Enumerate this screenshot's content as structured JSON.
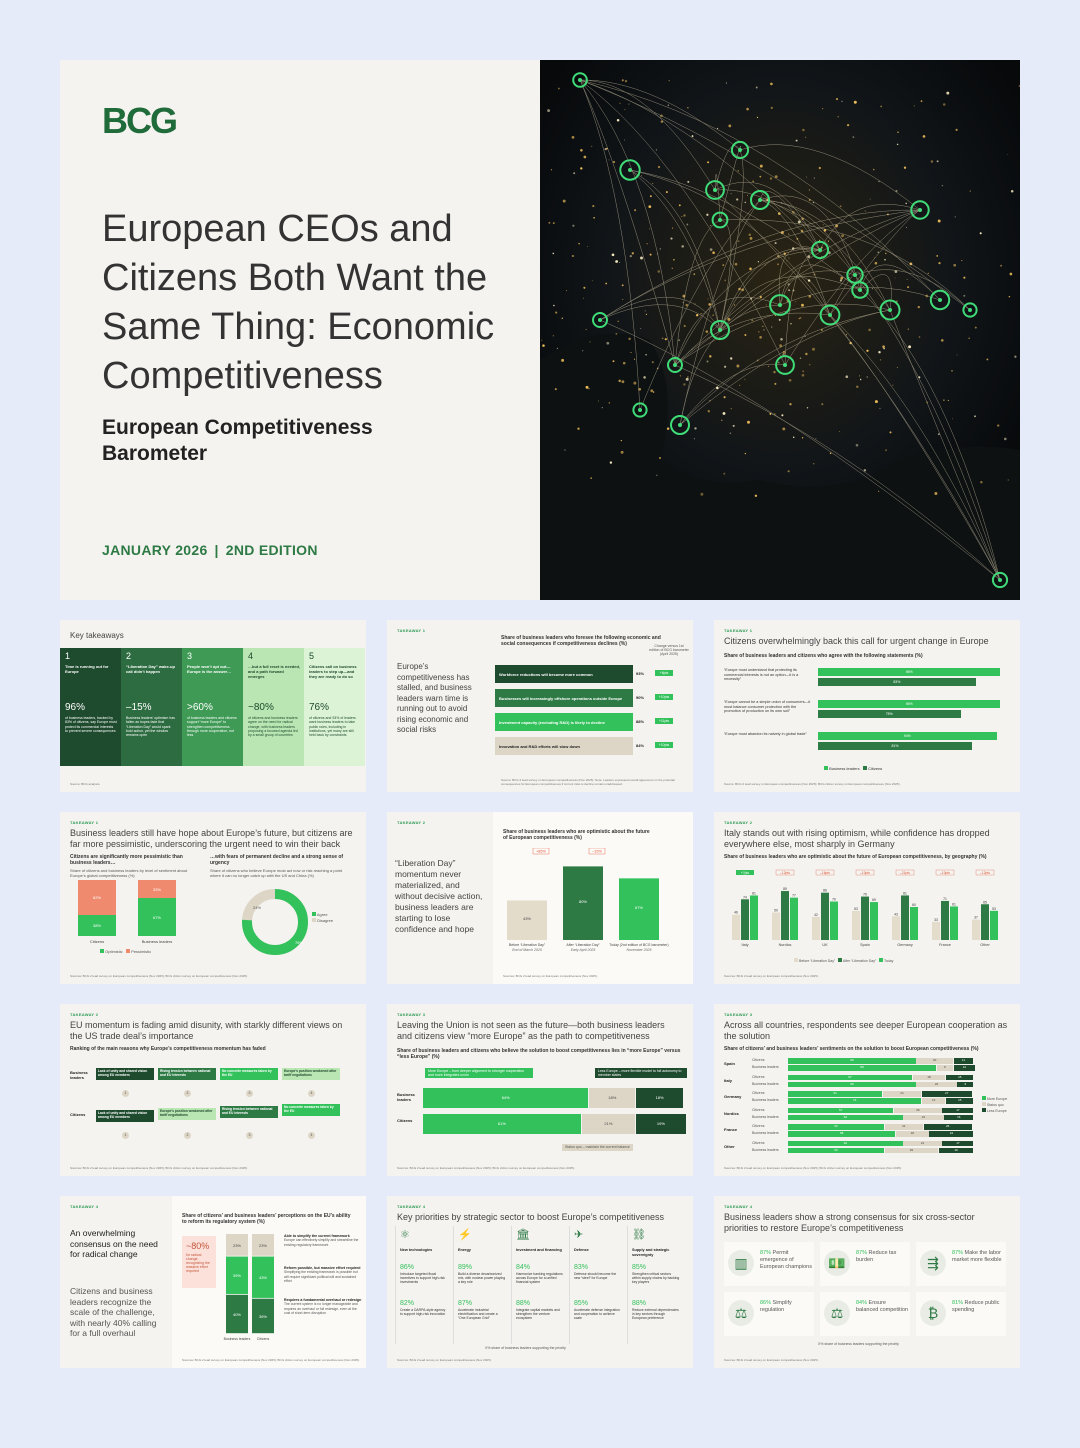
{
  "cover": {
    "logo": "BCG",
    "title": "European CEOs and Citizens Both Want the Same Thing: Economic Competitiveness",
    "subtitle": "European Competitiveness Barometer",
    "date": "JANUARY 2026",
    "edition": "2ND EDITION"
  },
  "tiles": {
    "t1": {
      "title": "Key takeaways",
      "cols": [
        {
          "num": "1",
          "head": "Time is running out for Europe",
          "stat": "96%",
          "desc": "of business leaders, backed by 83% of citizens, say Europe must protect its commercial interests to prevent severe consequences",
          "color": "#1e4a2e"
        },
        {
          "num": "2",
          "head": "“Liberation Day” wake-up call didn’t happen",
          "stat": "–15%",
          "desc": "Business leaders’ optimism has fallen as hopes fade that “Liberation Day” would spark bold action, yet the window remains open",
          "color": "#2d6b40"
        },
        {
          "num": "3",
          "head": "People won’t opt out—Europe is the answer…",
          "stat": ">60%",
          "desc": "of business leaders and citizens support “more Europe” to strengthen competitiveness through more cooperation, not less",
          "color": "#3f9a56"
        },
        {
          "num": "4",
          "head": "…but a full reset is needed, and a path forward emerges",
          "stat": "~80%",
          "desc": "of citizens and business leaders agree on the need for radical change, with business leaders proposing a focused agenda led by a small group of countries",
          "color": "#b9e6b2"
        },
        {
          "num": "5",
          "head": "Citizens call on business leaders to step up—and they are ready to do so",
          "stat": "76%",
          "desc": "of citizens and 93% of leaders want business leaders to take public roles, including in institutions, yet many are still held back by constraints",
          "color": "#dcf3d6"
        }
      ],
      "source": "Source: BCG analysis."
    },
    "t2": {
      "tag": "TAKEAWAY 1",
      "side": "Europe’s competitiveness has stalled, and business leaders warn time is running out to avoid rising economic and social risks",
      "subtitle": "Share of business leaders who foresee the following economic and social consequences if competitiveness declines (%)",
      "change_head": "Change versus 1st edition of BCG barometer (April 2025)",
      "rows": [
        {
          "label": "Workforce reductions will become more common",
          "value": 93,
          "change": "+6pts",
          "color": "#1e4a2e"
        },
        {
          "label": "Businesses will increasingly offshore operations outside Europe",
          "value": 90,
          "change": "+10pts",
          "color": "#2d7a45"
        },
        {
          "label": "Investment capacity (excluding R&D) is likely to decline",
          "value": 88,
          "change": "+11pts",
          "color": "#33c15c"
        },
        {
          "label": "Innovation and R&D efforts will slow down",
          "value": 84,
          "change": "+10pts",
          "color": "#ddd6c6"
        }
      ],
      "source": "Source: BCG 2 lead survey on European competitiveness (Nov 2025). Note: Leaders expressed overall agreement on the potential consequences for European competitiveness if current risks is decline remain unaddressed."
    },
    "t3": {
      "tag": "TAKEAWAY 1",
      "title": "Citizens overwhelmingly back this call for urgent change in Europe",
      "subtitle": "Share of business leaders and citizens who agree with the following statements (%)",
      "rows": [
        {
          "label": "“Europe must understand that protecting its commercial interests is not an option—it is a necessity”",
          "leaders": 96,
          "citizens": 83
        },
        {
          "label": "“Europe cannot be a simple union of consumers—it must balance consumer protection with the promotion of production on its own soil”",
          "leaders": 96,
          "citizens": 75
        },
        {
          "label": "“Europe must abandon its naivety in global trade”",
          "leaders": 94,
          "citizens": 81
        }
      ],
      "legend": [
        "Business leaders",
        "Citizens"
      ],
      "source": "Source: BCG 2 lead survey on European competitiveness (Nov 2025); BCG citizen survey on European competitiveness (Nov 2025)."
    },
    "t4": {
      "tag": "TAKEAWAY 1",
      "title": "Business leaders still have hope about Europe’s future, but citizens are far more pessimistic, underscoring the urgent need to win their back",
      "left_head": "Citizens are significantly more pessimistic than business leaders…",
      "left_sub": "Share of citizens and business leaders by level of sentiment about Europe’s global competitiveness (%)",
      "bars": [
        {
          "label": "Citizens",
          "opt": 38,
          "pess": 62
        },
        {
          "label": "Business leaders",
          "opt": 67,
          "pess": 33
        }
      ],
      "legend_left": [
        "Optimistic",
        "Pessimistic"
      ],
      "right_head": "…with fears of permanent decline and a strong sense of urgency",
      "right_sub": "Share of citizens who believe Europe must act now or risk reaching a point where it can no longer catch up with the US and China (%)",
      "donut": {
        "agree": 76,
        "disagree": 24
      },
      "legend_right": [
        "Agree",
        "Disagree"
      ],
      "source": "Sources: BCG 2 lead survey on European competitiveness (Nov 2025); BCG citizen survey on European competitiveness (Nov 2025)."
    },
    "t5": {
      "tag": "TAKEAWAY 2",
      "side": "“Liberation Day” momentum never materialized, and without decisive action, business leaders are starting to lose confidence and hope",
      "subtitle": "Share of business leaders who are optimistic about the future of European competitiveness (%)",
      "deltas": [
        "+85%",
        "–15%"
      ],
      "bars": [
        {
          "value": 43,
          "label": "Before “Liberation Day”",
          "sub": "End of March 2025",
          "color": "#e4dccb"
        },
        {
          "value": 80,
          "label": "After “Liberation Day”",
          "sub": "Early April 2025",
          "color": "#2d7a45"
        },
        {
          "value": 67,
          "label": "Today (2nd edition of BCG barometer)",
          "sub": "November 2025",
          "color": "#33c15c"
        }
      ],
      "source": "Sources: BCG 2 lead survey on European competitiveness (Nov 2025)."
    },
    "t6": {
      "tag": "TAKEAWAY 2",
      "title": "Italy stands out with rising optimism, while confidence has dropped everywhere else, most sharply in Germany",
      "subtitle": "Share of business leaders who are optimistic about the future of European competitiveness, by geography (%)",
      "groups": [
        {
          "name": "Italy",
          "vals": [
            46,
            74,
            81
          ],
          "delta": "+7pts"
        },
        {
          "name": "Nordics",
          "vals": [
            50,
            89,
            77
          ],
          "delta": "–12pts"
        },
        {
          "name": "UK",
          "vals": [
            42,
            86,
            70
          ],
          "delta": "–16pts"
        },
        {
          "name": "Spain",
          "vals": [
            53,
            79,
            69
          ],
          "delta": "–10pts"
        },
        {
          "name": "Germany",
          "vals": [
            43,
            81,
            60
          ],
          "delta": "–21pts"
        },
        {
          "name": "France",
          "vals": [
            33,
            71,
            61
          ],
          "delta": "–10pts"
        },
        {
          "name": "Other",
          "vals": [
            37,
            65,
            53
          ],
          "delta": "–12pts"
        }
      ],
      "legend": [
        "Before “Liberation Day”",
        "After “Liberation Day”",
        "Today"
      ],
      "source": "Sources: BCG 2 lead survey on European competitiveness (Nov 2025)."
    },
    "t7": {
      "tag": "TAKEAWAY 2",
      "title": "EU momentum is fading amid disunity, with starkly different views on the US trade deal’s importance",
      "subtitle": "Ranking of the main reasons why Europe’s competitiveness momentum has faded",
      "rows": [
        {
          "label": "Business leaders",
          "items": [
            "Lack of unity and shared vision among EU members",
            "Rising tension between national and EU interests",
            "No concrete measures taken by the EU",
            "Europe’s position weakened after tariff negotiations"
          ]
        },
        {
          "label": "Citizens",
          "items": [
            "Lack of unity and shared vision among EU members",
            "Europe’s position weakened after tariff negotiations",
            "Rising tension between national and EU interests",
            "No concrete measures taken by the EU"
          ]
        }
      ],
      "ranks": [
        "1",
        "2",
        "3",
        "4"
      ],
      "source": "Sources: BCG 2 lead survey on European competitiveness (Nov 2025); BCG citizen survey on European competitiveness (Nov 2025)."
    },
    "t8": {
      "tag": "TAKEAWAY 3",
      "title": "Leaving the Union is not seen as the future—both business leaders and citizens view “more Europe” as the path to competitiveness",
      "subtitle": "Share of business leaders and citizens who believe the solution to boost competitiveness lies in “more Europe” versus “less Europe” (%)",
      "more": "More Europe – from deeper alignment to stronger cooperation and more integrated union",
      "less": "Less Europe – more flexible model to full autonomy to member states",
      "rows": [
        {
          "label": "Business leaders",
          "more": 64,
          "quo": 18,
          "less": 18
        },
        {
          "label": "Citizens",
          "more": 61,
          "quo": 21,
          "less": 19
        }
      ],
      "statusquo": "Status quo – maintain the current balance",
      "source": "Sources: BCG 2 lead survey on European competitiveness (Nov 2025); BCG citizen survey on European competitiveness (Nov 2025)."
    },
    "t9": {
      "tag": "TAKEAWAY 3",
      "title": "Across all countries, respondents see deeper European cooperation as the solution",
      "subtitle": "Share of citizens’ and business leaders’ sentiments on the solution to boost European competitiveness (%)",
      "countries": [
        {
          "name": "Spain",
          "rows": [
            [
              69,
              20,
              11
            ],
            [
              80,
              9,
              12
            ]
          ]
        },
        {
          "name": "Italy",
          "rows": [
            [
              67,
              18,
              15
            ],
            [
              69,
              22,
              9
            ]
          ]
        },
        {
          "name": "Germany",
          "rows": [
            [
              51,
              21,
              27
            ],
            [
              72,
              13,
              15
            ]
          ]
        },
        {
          "name": "Nordics",
          "rows": [
            [
              57,
              26,
              17
            ],
            [
              62,
              22,
              16
            ]
          ]
        },
        {
          "name": "France",
          "rows": [
            [
              52,
              21,
              26
            ],
            [
              58,
              18,
              24
            ]
          ]
        },
        {
          "name": "Other",
          "rows": [
            [
              62,
              21,
              17
            ],
            [
              52,
              29,
              19
            ]
          ]
        }
      ],
      "rowlabels": [
        "Citizens",
        "Business leaders"
      ],
      "legend": [
        "More Europe",
        "Status quo",
        "Less Europe"
      ],
      "source": "Sources: BCG 2 lead survey on European competitiveness (Nov 2025); BCG citizen survey on European competitiveness (Nov 2025)."
    },
    "t10": {
      "tag": "TAKEAWAY 4",
      "side1": "An overwhelming consensus on the need for radical change",
      "side2": "Citizens and business leaders recognize the scale of the challenge, with nearly 40% calling for a full overhaul",
      "subtitle": "Share of citizens’ and business leaders’ perceptions on the EU’s ability to reform its regulatory system (%)",
      "callout_stat": "~80%",
      "callout_text": "for radical change, recognizing the massive effort required",
      "cols": [
        {
          "label": "Business leaders",
          "vals": [
            23,
            39,
            40
          ]
        },
        {
          "label": "Citizens",
          "vals": [
            23,
            43,
            36
          ]
        }
      ],
      "notes": [
        {
          "head": "Able to simplify the current framework",
          "body": "Europe can effectively simplify and streamline the existing regulatory framework"
        },
        {
          "head": "Reform possible, but massive effort required",
          "body": "Simplifying the existing framework is possible but will require significant political will and sustained effort"
        },
        {
          "head": "Requires a fundamental overhaul or redesign",
          "body": "The current system is no longer manageable and requires an overhaul or full redesign, even at the cost of short-term disruption"
        }
      ],
      "source": "Sources: BCG 2 lead survey on European competitiveness (Nov 2025); BCG citizen survey on European competitiveness (Nov 2025)."
    },
    "t11": {
      "tag": "TAKEAWAY 4",
      "title": "Key priorities by strategic sector to boost Europe’s competitiveness",
      "sectors": [
        {
          "name": "New technologies",
          "p1": "86%",
          "t1": "Introduce targeted fiscal incentives to support high-risk investments",
          "p2": "82%",
          "t2": "Create a DARPA-style agency to support high-risk innovation"
        },
        {
          "name": "Energy",
          "p1": "89%",
          "t1": "Build a diverse decarbonized mix, with nuclear power playing a key role",
          "p2": "87%",
          "t2": "Accelerate industrial electrification and create a “One European Grid”"
        },
        {
          "name": "Investment and financing",
          "p1": "84%",
          "t1": "Harmonize banking regulations across Europe for a unified financial system",
          "p2": "88%",
          "t2": "Integrate capital markets and strengthen the venture ecosystem"
        },
        {
          "name": "Defense",
          "p1": "83%",
          "t1": "Defense should become the new “steel” for Europe",
          "p2": "85%",
          "t2": "Accelerate defense integration and cooperation to achieve scale"
        },
        {
          "name": "Supply and strategic sovereignty",
          "p1": "85%",
          "t1": "Strengthen critical sectors within supply chains by backing key players",
          "p2": "88%",
          "t2": "Reduce external dependencies in key sectors through European preference"
        }
      ],
      "foot": "X% share of business leaders supporting the priority",
      "source": "Sources: BCG 2 lead survey on European competitiveness (Nov 2025)."
    },
    "t12": {
      "tag": "TAKEAWAY 4",
      "title": "Business leaders show a strong consensus for six cross-sector priorities to restore Europe’s competitiveness",
      "items": [
        {
          "pct": "87%",
          "text": "Permit emergence of European champions"
        },
        {
          "pct": "87%",
          "text": "Reduce tax burden"
        },
        {
          "pct": "87%",
          "text": "Make the labor market more flexible"
        },
        {
          "pct": "86%",
          "text": "Simplify regulation"
        },
        {
          "pct": "84%",
          "text": "Ensure balanced competition"
        },
        {
          "pct": "81%",
          "text": "Reduce public spending"
        }
      ],
      "foot": "X% share of business leaders supporting the priority",
      "source": "Sources: BCG 2 lead survey on European competitiveness (Nov 2025)."
    }
  },
  "colors": {
    "dark": "#1e4a2e",
    "mid": "#2d7a45",
    "bright": "#33c15c",
    "light": "#b9e6b2",
    "beige": "#ddd6c6",
    "salmon": "#f08a6e",
    "bg": "#e6ebfa"
  }
}
